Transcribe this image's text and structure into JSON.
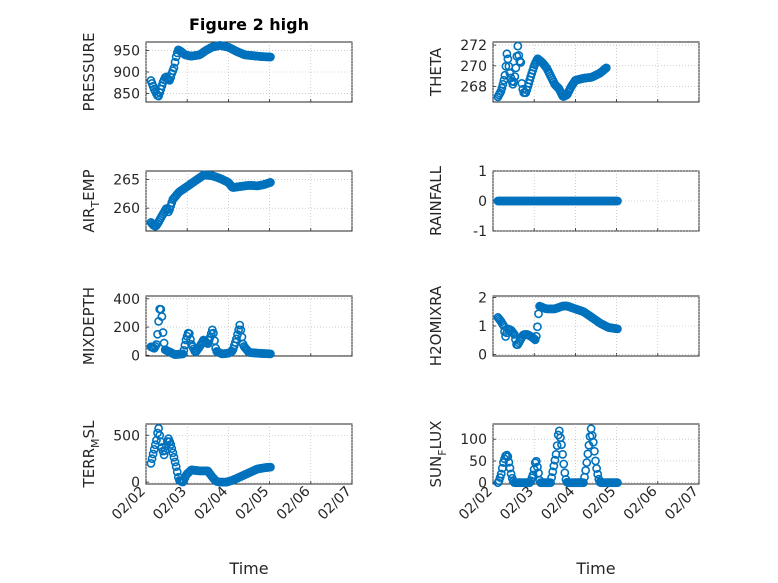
{
  "colors": {
    "marker": "#0072BD",
    "axis": "#262626",
    "grid": "#b0b0b0"
  },
  "chart_data": [
    {
      "type": "scatter",
      "id": "pressure",
      "title": "Figure 2 high",
      "ylabel": "PRESSURE",
      "ylim": [
        830,
        970
      ],
      "yticks": [
        850,
        900,
        950
      ],
      "yticklabels": [
        "850",
        "900",
        "950"
      ],
      "xlim": [
        0,
        5
      ],
      "xticks": [
        0,
        1,
        2,
        3,
        4,
        5
      ],
      "xticklabels": [
        "02/02",
        "02/03",
        "02/04",
        "02/05",
        "02/06",
        "02/07"
      ],
      "show_xticklabels": false,
      "xlabel": "",
      "anchors": [
        [
          0.12,
          880
        ],
        [
          0.16,
          870
        ],
        [
          0.2,
          860
        ],
        [
          0.26,
          848
        ],
        [
          0.3,
          842
        ],
        [
          0.36,
          860
        ],
        [
          0.42,
          878
        ],
        [
          0.48,
          890
        ],
        [
          0.52,
          885
        ],
        [
          0.58,
          880
        ],
        [
          0.62,
          895
        ],
        [
          0.68,
          910
        ],
        [
          0.73,
          935
        ],
        [
          0.78,
          952
        ],
        [
          0.85,
          948
        ],
        [
          0.95,
          940
        ],
        [
          1.1,
          937
        ],
        [
          1.3,
          940
        ],
        [
          1.45,
          950
        ],
        [
          1.6,
          958
        ],
        [
          1.8,
          962
        ],
        [
          2.0,
          958
        ],
        [
          2.2,
          948
        ],
        [
          2.4,
          940
        ],
        [
          2.6,
          938
        ],
        [
          2.8,
          936
        ],
        [
          3.02,
          935
        ]
      ],
      "n_points": 110
    },
    {
      "type": "scatter",
      "id": "theta",
      "ylabel": "THETA",
      "ylim": [
        266.5,
        272.3
      ],
      "yticks": [
        268,
        270,
        272
      ],
      "yticklabels": [
        "268",
        "270",
        "272"
      ],
      "xlim": [
        0,
        5
      ],
      "xticks": [
        0,
        1,
        2,
        3,
        4,
        5
      ],
      "xticklabels": [
        "02/02",
        "02/03",
        "02/04",
        "02/05",
        "02/06",
        "02/07"
      ],
      "show_xticklabels": false,
      "xlabel": "",
      "anchors": [
        [
          0.12,
          267.0
        ],
        [
          0.2,
          267.6
        ],
        [
          0.26,
          268.5
        ],
        [
          0.3,
          269.3
        ],
        [
          0.34,
          271.3
        ],
        [
          0.38,
          270.1
        ],
        [
          0.42,
          269.0
        ],
        [
          0.48,
          268.2
        ],
        [
          0.52,
          268.6
        ],
        [
          0.56,
          270.0
        ],
        [
          0.6,
          272.0
        ],
        [
          0.64,
          270.5
        ],
        [
          0.68,
          270.3
        ],
        [
          0.7,
          268.2
        ],
        [
          0.74,
          267.4
        ],
        [
          0.8,
          267.4
        ],
        [
          0.86,
          268.2
        ],
        [
          0.92,
          269.0
        ],
        [
          1.0,
          270.0
        ],
        [
          1.08,
          270.7
        ],
        [
          1.2,
          270.3
        ],
        [
          1.3,
          269.8
        ],
        [
          1.4,
          269.0
        ],
        [
          1.5,
          268.2
        ],
        [
          1.6,
          267.8
        ],
        [
          1.7,
          267.0
        ],
        [
          1.8,
          267.2
        ],
        [
          1.9,
          268.0
        ],
        [
          2.0,
          268.6
        ],
        [
          2.2,
          268.8
        ],
        [
          2.4,
          268.9
        ],
        [
          2.6,
          269.3
        ],
        [
          2.75,
          269.8
        ]
      ],
      "n_points": 110
    },
    {
      "type": "scatter",
      "id": "airtemp",
      "ylabel": "AIR",
      "ylabel_sub": "T",
      "ylabel_tail": "EMP",
      "ylim": [
        256,
        266.5
      ],
      "yticks": [
        260,
        265
      ],
      "yticklabels": [
        "260",
        "265"
      ],
      "xlim": [
        0,
        5
      ],
      "xticks": [
        0,
        1,
        2,
        3,
        4,
        5
      ],
      "xticklabels": [
        "02/02",
        "02/03",
        "02/04",
        "02/05",
        "02/06",
        "02/07"
      ],
      "show_xticklabels": false,
      "xlabel": "",
      "anchors": [
        [
          0.12,
          257.5
        ],
        [
          0.18,
          257.0
        ],
        [
          0.24,
          256.8
        ],
        [
          0.3,
          257.5
        ],
        [
          0.4,
          258.8
        ],
        [
          0.5,
          260.0
        ],
        [
          0.55,
          259.3
        ],
        [
          0.65,
          261.5
        ],
        [
          0.8,
          262.8
        ],
        [
          1.0,
          263.8
        ],
        [
          1.2,
          264.8
        ],
        [
          1.4,
          265.8
        ],
        [
          1.6,
          265.7
        ],
        [
          1.8,
          265.2
        ],
        [
          2.0,
          264.5
        ],
        [
          2.1,
          263.6
        ],
        [
          2.3,
          263.8
        ],
        [
          2.5,
          264.0
        ],
        [
          2.7,
          263.9
        ],
        [
          2.85,
          264.1
        ],
        [
          3.02,
          264.5
        ]
      ],
      "n_points": 110
    },
    {
      "type": "scatter",
      "id": "rainfall",
      "ylabel": "RAINFALL",
      "ylim": [
        -1,
        1
      ],
      "yticks": [
        -1,
        0,
        1
      ],
      "yticklabels": [
        "-1",
        "0",
        "1"
      ],
      "xlim": [
        0,
        5
      ],
      "xticks": [
        0,
        1,
        2,
        3,
        4,
        5
      ],
      "xticklabels": [
        "02/02",
        "02/03",
        "02/04",
        "02/05",
        "02/06",
        "02/07"
      ],
      "show_xticklabels": false,
      "xlabel": "",
      "anchors": [
        [
          0.12,
          0
        ],
        [
          3.02,
          0
        ]
      ],
      "n_points": 110
    },
    {
      "type": "scatter",
      "id": "mixdepth",
      "ylabel": "MIXDEPTH",
      "ylim": [
        -5,
        420
      ],
      "yticks": [
        0,
        200,
        400
      ],
      "yticklabels": [
        "0",
        "200",
        "400"
      ],
      "xlim": [
        0,
        5
      ],
      "xticks": [
        0,
        1,
        2,
        3,
        4,
        5
      ],
      "xticklabels": [
        "02/02",
        "02/03",
        "02/04",
        "02/05",
        "02/06",
        "02/07"
      ],
      "show_xticklabels": false,
      "xlabel": "",
      "anchors": [
        [
          0.12,
          60
        ],
        [
          0.2,
          50
        ],
        [
          0.26,
          80
        ],
        [
          0.3,
          220
        ],
        [
          0.34,
          350
        ],
        [
          0.38,
          300
        ],
        [
          0.42,
          130
        ],
        [
          0.46,
          40
        ],
        [
          0.6,
          20
        ],
        [
          0.7,
          5
        ],
        [
          0.9,
          10
        ],
        [
          0.98,
          120
        ],
        [
          1.04,
          170
        ],
        [
          1.1,
          80
        ],
        [
          1.2,
          20
        ],
        [
          1.3,
          60
        ],
        [
          1.4,
          110
        ],
        [
          1.5,
          80
        ],
        [
          1.56,
          130
        ],
        [
          1.62,
          190
        ],
        [
          1.7,
          30
        ],
        [
          1.85,
          10
        ],
        [
          2.0,
          15
        ],
        [
          2.1,
          30
        ],
        [
          2.2,
          120
        ],
        [
          2.28,
          220
        ],
        [
          2.36,
          70
        ],
        [
          2.5,
          20
        ],
        [
          2.7,
          15
        ],
        [
          3.02,
          10
        ]
      ],
      "n_points": 110
    },
    {
      "type": "scatter",
      "id": "h2omixra",
      "ylabel": "H2OMIXRA",
      "ylim": [
        -0.05,
        2.05
      ],
      "yticks": [
        0,
        1,
        2
      ],
      "yticklabels": [
        "0",
        "1",
        "2"
      ],
      "xlim": [
        0,
        5
      ],
      "xticks": [
        0,
        1,
        2,
        3,
        4,
        5
      ],
      "xticklabels": [
        "02/02",
        "02/03",
        "02/04",
        "02/05",
        "02/06",
        "02/07"
      ],
      "show_xticklabels": false,
      "xlabel": "",
      "anchors": [
        [
          0.12,
          1.3
        ],
        [
          0.2,
          1.15
        ],
        [
          0.26,
          1.0
        ],
        [
          0.3,
          0.6
        ],
        [
          0.36,
          0.9
        ],
        [
          0.44,
          0.85
        ],
        [
          0.52,
          0.7
        ],
        [
          0.58,
          0.3
        ],
        [
          0.66,
          0.5
        ],
        [
          0.74,
          0.7
        ],
        [
          0.84,
          0.7
        ],
        [
          0.96,
          0.6
        ],
        [
          1.04,
          0.5
        ],
        [
          1.08,
          1.0
        ],
        [
          1.12,
          1.7
        ],
        [
          1.2,
          1.65
        ],
        [
          1.3,
          1.6
        ],
        [
          1.5,
          1.6
        ],
        [
          1.7,
          1.7
        ],
        [
          1.8,
          1.7
        ],
        [
          2.0,
          1.6
        ],
        [
          2.2,
          1.5
        ],
        [
          2.4,
          1.3
        ],
        [
          2.6,
          1.1
        ],
        [
          2.8,
          0.95
        ],
        [
          3.02,
          0.9
        ]
      ],
      "n_points": 110
    },
    {
      "type": "scatter",
      "id": "terrmsl",
      "ylabel": "TERR",
      "ylabel_sub": "M",
      "ylabel_tail": "SL",
      "ylim": [
        -20,
        620
      ],
      "yticks": [
        0,
        500
      ],
      "yticklabels": [
        "0",
        "500"
      ],
      "xlim": [
        0,
        5
      ],
      "xticks": [
        0,
        1,
        2,
        3,
        4,
        5
      ],
      "xticklabels": [
        "02/02",
        "02/03",
        "02/04",
        "02/05",
        "02/06",
        "02/07"
      ],
      "show_xticklabels": true,
      "xlabel": "Time",
      "anchors": [
        [
          0.12,
          200
        ],
        [
          0.2,
          350
        ],
        [
          0.26,
          460
        ],
        [
          0.3,
          590
        ],
        [
          0.34,
          480
        ],
        [
          0.38,
          380
        ],
        [
          0.44,
          290
        ],
        [
          0.5,
          400
        ],
        [
          0.54,
          470
        ],
        [
          0.6,
          400
        ],
        [
          0.66,
          300
        ],
        [
          0.74,
          150
        ],
        [
          0.8,
          20
        ],
        [
          0.9,
          0
        ],
        [
          0.98,
          80
        ],
        [
          1.1,
          130
        ],
        [
          1.3,
          120
        ],
        [
          1.5,
          120
        ],
        [
          1.6,
          60
        ],
        [
          1.7,
          10
        ],
        [
          1.8,
          0
        ],
        [
          1.95,
          0
        ],
        [
          2.1,
          20
        ],
        [
          2.3,
          60
        ],
        [
          2.5,
          100
        ],
        [
          2.7,
          140
        ],
        [
          2.9,
          155
        ],
        [
          3.02,
          160
        ]
      ],
      "n_points": 110
    },
    {
      "type": "scatter",
      "id": "sunflux",
      "ylabel": "SUN",
      "ylabel_sub": "F",
      "ylabel_tail": "LUX",
      "ylim": [
        -3,
        135
      ],
      "yticks": [
        0,
        50,
        100
      ],
      "yticklabels": [
        "0",
        "50",
        "100"
      ],
      "xlim": [
        0,
        5
      ],
      "xticks": [
        0,
        1,
        2,
        3,
        4,
        5
      ],
      "xticklabels": [
        "02/02",
        "02/03",
        "02/04",
        "02/05",
        "02/06",
        "02/07"
      ],
      "show_xticklabels": true,
      "xlabel": "Time",
      "anchors": [
        [
          0.12,
          0
        ],
        [
          0.15,
          5
        ],
        [
          0.2,
          20
        ],
        [
          0.26,
          50
        ],
        [
          0.32,
          65
        ],
        [
          0.36,
          60
        ],
        [
          0.4,
          40
        ],
        [
          0.44,
          20
        ],
        [
          0.48,
          5
        ],
        [
          0.52,
          0
        ],
        [
          0.9,
          0
        ],
        [
          0.98,
          20
        ],
        [
          1.04,
          55
        ],
        [
          1.1,
          25
        ],
        [
          1.14,
          0
        ],
        [
          1.4,
          0
        ],
        [
          1.46,
          30
        ],
        [
          1.54,
          70
        ],
        [
          1.6,
          125
        ],
        [
          1.66,
          90
        ],
        [
          1.72,
          40
        ],
        [
          1.76,
          10
        ],
        [
          1.8,
          0
        ],
        [
          2.2,
          0
        ],
        [
          2.26,
          35
        ],
        [
          2.32,
          80
        ],
        [
          2.38,
          125
        ],
        [
          2.44,
          90
        ],
        [
          2.5,
          40
        ],
        [
          2.56,
          10
        ],
        [
          2.6,
          0
        ],
        [
          3.02,
          0
        ]
      ],
      "n_points": 110
    }
  ]
}
